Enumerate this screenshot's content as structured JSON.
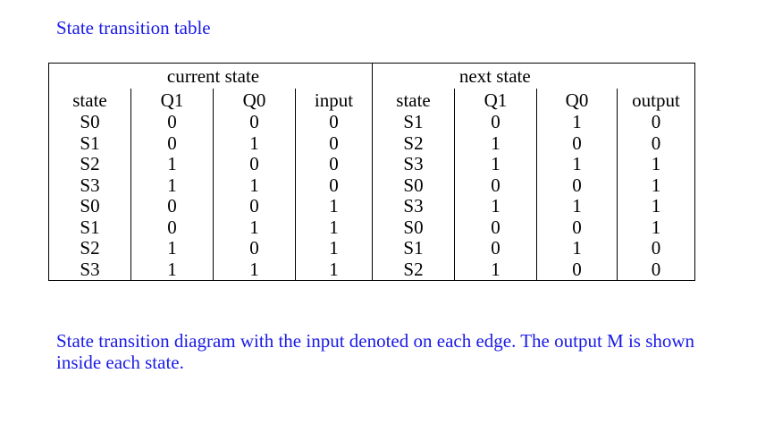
{
  "heading": "State transition table",
  "table": {
    "group_headers": {
      "current": "current state",
      "next": "next state"
    },
    "columns": [
      "state",
      "Q1",
      "Q0",
      "input",
      "state",
      "Q1",
      "Q0",
      "output"
    ],
    "rows": [
      [
        "S0",
        "0",
        "0",
        "0",
        "S1",
        "0",
        "1",
        "0"
      ],
      [
        "S1",
        "0",
        "1",
        "0",
        "S2",
        "1",
        "0",
        "0"
      ],
      [
        "S2",
        "1",
        "0",
        "0",
        "S3",
        "1",
        "1",
        "1"
      ],
      [
        "S3",
        "1",
        "1",
        "0",
        "S0",
        "0",
        "0",
        "1"
      ],
      [
        "S0",
        "0",
        "0",
        "1",
        "S3",
        "1",
        "1",
        "1"
      ],
      [
        "S1",
        "0",
        "1",
        "1",
        "S0",
        "0",
        "0",
        "1"
      ],
      [
        "S2",
        "1",
        "0",
        "1",
        "S1",
        "0",
        "1",
        "0"
      ],
      [
        "S3",
        "1",
        "1",
        "1",
        "S2",
        "1",
        "0",
        "0"
      ]
    ]
  },
  "caption": "State transition diagram with the input denoted on each edge. The output M is shown inside each state."
}
